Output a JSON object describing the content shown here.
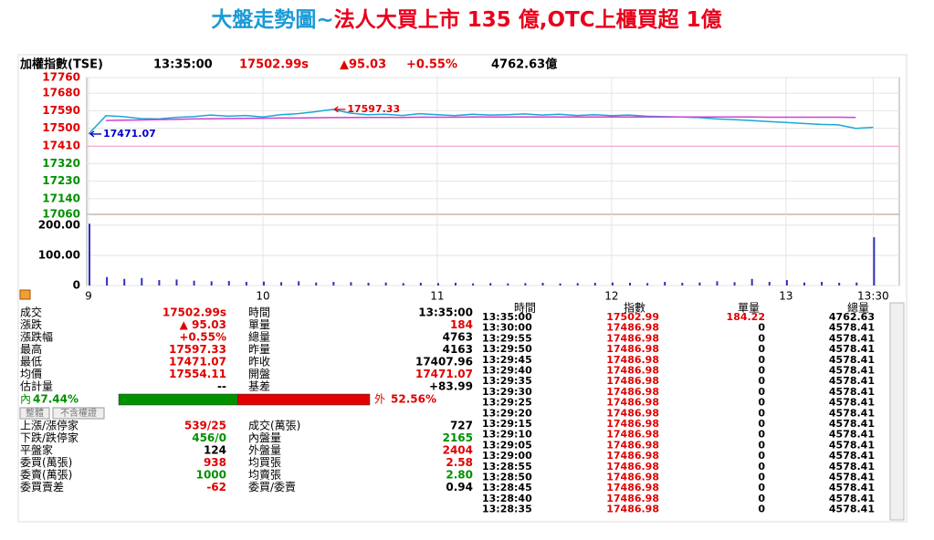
{
  "title": {
    "part1": "大盤走勢圖~",
    "part2": "法人大買上市 135 億,OTC上櫃買超 1億"
  },
  "header": {
    "name": "加權指數(TSE)",
    "time": "13:35:00",
    "price": "17502.99s",
    "change": "▲95.03",
    "percent": "+0.55%",
    "volume": "4762.63億"
  },
  "chart_data": [
    {
      "type": "line",
      "x": [
        9,
        9.1,
        9.2,
        9.3,
        9.4,
        9.5,
        9.6,
        9.7,
        9.8,
        9.9,
        10,
        10.1,
        10.2,
        10.3,
        10.4,
        10.5,
        10.6,
        10.7,
        10.8,
        10.9,
        11,
        11.1,
        11.2,
        11.3,
        11.4,
        11.5,
        11.6,
        11.7,
        11.8,
        11.9,
        12,
        12.1,
        12.2,
        12.3,
        12.4,
        12.5,
        12.6,
        12.7,
        12.8,
        12.9,
        13,
        13.1,
        13.2,
        13.3,
        13.4,
        13.5
      ],
      "xlim": [
        9,
        13.65
      ],
      "ylim": [
        17060,
        17760
      ],
      "yticks": [
        17060,
        17140,
        17230,
        17320,
        17410,
        17500,
        17590,
        17680,
        17760
      ],
      "reference": 17407.96,
      "grid": true,
      "up_color": "#e00000",
      "down_color": "#009000",
      "reference_color": "#f0a0c8",
      "series": [
        {
          "color": "#1aa7d8",
          "values": [
            17471.07,
            17565,
            17560,
            17550,
            17548,
            17556,
            17560,
            17568,
            17562,
            17566,
            17558,
            17570,
            17575,
            17585,
            17597.33,
            17578,
            17570,
            17572,
            17566,
            17575,
            17570,
            17565,
            17572,
            17568,
            17570,
            17574,
            17568,
            17572,
            17566,
            17570,
            17565,
            17568,
            17562,
            17560,
            17558,
            17555,
            17548,
            17545,
            17540,
            17535,
            17530,
            17525,
            17520,
            17518,
            17500,
            17505
          ]
        },
        {
          "color": "#d040d0",
          "values": [
            null,
            17540,
            17542,
            17543,
            17545,
            17546,
            17548,
            17549,
            17550,
            17551,
            17552,
            17553,
            17553,
            17554,
            17555,
            17555,
            17556,
            17556,
            17556,
            17557,
            17557,
            17557,
            17558,
            17558,
            17558,
            17558,
            17558,
            17558,
            17558,
            17558,
            17558,
            17558,
            17558,
            17558,
            17558,
            17558,
            17558,
            17558,
            17558,
            17557,
            17557,
            17557,
            17557,
            17557,
            17556,
            null
          ]
        }
      ],
      "annotations": [
        {
          "x": 10.4,
          "y": 17597.33,
          "color": "#e00000"
        },
        {
          "x": 9,
          "y": 17471.07,
          "color": "#0000cc"
        }
      ]
    },
    {
      "type": "bar",
      "x": [
        9,
        9.1,
        9.2,
        9.3,
        9.4,
        9.5,
        9.6,
        9.7,
        9.8,
        9.9,
        10,
        10.1,
        10.2,
        10.3,
        10.4,
        10.5,
        10.6,
        10.7,
        10.8,
        10.9,
        11,
        11.1,
        11.2,
        11.3,
        11.4,
        11.5,
        11.6,
        11.7,
        11.8,
        11.9,
        12,
        12.1,
        12.2,
        12.3,
        12.4,
        12.5,
        12.6,
        12.7,
        12.8,
        12.9,
        13,
        13.1,
        13.2,
        13.3,
        13.4,
        13.5
      ],
      "values": [
        205,
        28,
        22,
        25,
        18,
        20,
        16,
        14,
        15,
        12,
        13,
        11,
        14,
        10,
        12,
        11,
        9,
        10,
        8,
        9,
        8,
        9,
        7,
        8,
        7,
        8,
        9,
        7,
        8,
        9,
        10,
        9,
        8,
        12,
        9,
        10,
        14,
        11,
        22,
        12,
        18,
        10,
        12,
        9,
        10,
        160
      ],
      "color": "#3030c0",
      "xlim": [
        9,
        13.65
      ],
      "ylim": [
        0,
        230
      ],
      "yticks": [
        0,
        {
          "value": 100,
          "label": "100.00"
        },
        {
          "value": 200,
          "label": "200.00"
        }
      ],
      "xticks": [
        9,
        10,
        11,
        12,
        13,
        {
          "value": 13.5,
          "label": "13:30"
        }
      ],
      "grid": true
    }
  ],
  "stats": {
    "upper": [
      [
        {
          "text": "成交",
          "color": "#000"
        },
        {
          "text": "17502.99s",
          "color": "#e00000"
        },
        {
          "text": "時間",
          "color": "#000"
        },
        {
          "text": "13:35:00",
          "color": "#000"
        }
      ],
      [
        {
          "text": "漲跌",
          "color": "#000"
        },
        {
          "text": "▲ 95.03",
          "color": "#e00000"
        },
        {
          "text": "單量",
          "color": "#000"
        },
        {
          "text": "184",
          "color": "#e00000"
        }
      ],
      [
        {
          "text": "漲跌幅",
          "color": "#000"
        },
        {
          "text": "+0.55%",
          "color": "#e00000"
        },
        {
          "text": "總量",
          "color": "#000"
        },
        {
          "text": "4763",
          "color": "#000"
        }
      ],
      [
        {
          "text": "最高",
          "color": "#000"
        },
        {
          "text": "17597.33",
          "color": "#e00000"
        },
        {
          "text": "昨量",
          "color": "#000"
        },
        {
          "text": "4163",
          "color": "#000"
        }
      ],
      [
        {
          "text": "最低",
          "color": "#000"
        },
        {
          "text": "17471.07",
          "color": "#e00000"
        },
        {
          "text": "昨收",
          "color": "#000"
        },
        {
          "text": "17407.96",
          "color": "#000"
        }
      ],
      [
        {
          "text": "均價",
          "color": "#000"
        },
        {
          "text": "17554.11",
          "color": "#e00000"
        },
        {
          "text": "開盤",
          "color": "#000"
        },
        {
          "text": "17471.07",
          "color": "#e00000"
        }
      ],
      [
        {
          "text": "估計量",
          "color": "#000"
        },
        {
          "text": "--",
          "color": "#000"
        },
        {
          "text": "基差",
          "color": "#000"
        },
        {
          "text": "+83.99",
          "color": "#000"
        }
      ]
    ],
    "ratio": {
      "labels": [
        "內",
        "外"
      ],
      "values": [
        47.44,
        52.56
      ],
      "value_labels": [
        "47.44%",
        "52.56%"
      ],
      "colors": [
        "#009000",
        "#e00000"
      ]
    },
    "buttons": [
      "整體",
      "不含權證"
    ],
    "lower": [
      [
        {
          "text": "上漲/漲停家",
          "color": "#000"
        },
        {
          "text": "539/25",
          "color": "#e00000"
        },
        {
          "text": "成交(萬張)",
          "color": "#000"
        },
        {
          "text": "727",
          "color": "#000"
        }
      ],
      [
        {
          "text": "下跌/跌停家",
          "color": "#000"
        },
        {
          "text": "456/0",
          "color": "#009000"
        },
        {
          "text": "內盤量",
          "color": "#000"
        },
        {
          "text": "2165",
          "color": "#009000"
        }
      ],
      [
        {
          "text": "平盤家",
          "color": "#000"
        },
        {
          "text": "124",
          "color": "#000"
        },
        {
          "text": "外盤量",
          "color": "#000"
        },
        {
          "text": "2404",
          "color": "#e00000"
        }
      ],
      [
        {
          "text": "委買(萬張)",
          "color": "#000"
        },
        {
          "text": "938",
          "color": "#e00000"
        },
        {
          "text": "均買張",
          "color": "#000"
        },
        {
          "text": "2.58",
          "color": "#e00000"
        }
      ],
      [
        {
          "text": "委賣(萬張)",
          "color": "#000"
        },
        {
          "text": "1000",
          "color": "#009000"
        },
        {
          "text": "均賣張",
          "color": "#000"
        },
        {
          "text": "2.80",
          "color": "#009000"
        }
      ],
      [
        {
          "text": "委買賣差",
          "color": "#000"
        },
        {
          "text": "-62",
          "color": "#e00000"
        },
        {
          "text": "委買/委賣",
          "color": "#000"
        },
        {
          "text": "0.94",
          "color": "#000"
        }
      ]
    ]
  },
  "ticks_table": {
    "headers": [
      "時間",
      "指數",
      "單量",
      "總量"
    ],
    "rows": [
      [
        "13:35:00",
        "17502.99",
        "184.22",
        "4762.63"
      ],
      [
        "13:30:00",
        "17486.98",
        "0",
        "4578.41"
      ],
      [
        "13:29:55",
        "17486.98",
        "0",
        "4578.41"
      ],
      [
        "13:29:50",
        "17486.98",
        "0",
        "4578.41"
      ],
      [
        "13:29:45",
        "17486.98",
        "0",
        "4578.41"
      ],
      [
        "13:29:40",
        "17486.98",
        "0",
        "4578.41"
      ],
      [
        "13:29:35",
        "17486.98",
        "0",
        "4578.41"
      ],
      [
        "13:29:30",
        "17486.98",
        "0",
        "4578.41"
      ],
      [
        "13:29:25",
        "17486.98",
        "0",
        "4578.41"
      ],
      [
        "13:29:20",
        "17486.98",
        "0",
        "4578.41"
      ],
      [
        "13:29:15",
        "17486.98",
        "0",
        "4578.41"
      ],
      [
        "13:29:10",
        "17486.98",
        "0",
        "4578.41"
      ],
      [
        "13:29:05",
        "17486.98",
        "0",
        "4578.41"
      ],
      [
        "13:29:00",
        "17486.98",
        "0",
        "4578.41"
      ],
      [
        "13:28:55",
        "17486.98",
        "0",
        "4578.41"
      ],
      [
        "13:28:50",
        "17486.98",
        "0",
        "4578.41"
      ],
      [
        "13:28:45",
        "17486.98",
        "0",
        "4578.41"
      ],
      [
        "13:28:40",
        "17486.98",
        "0",
        "4578.41"
      ],
      [
        "13:28:35",
        "17486.98",
        "0",
        "4578.41"
      ]
    ]
  }
}
